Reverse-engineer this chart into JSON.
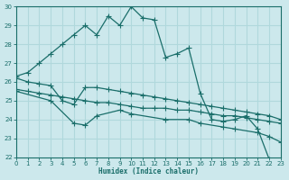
{
  "bg_color": "#cce8ec",
  "grid_color": "#b0d8dc",
  "line_color": "#1a6e6a",
  "xlabel": "Humidex (Indice chaleur)",
  "xlim": [
    0,
    23
  ],
  "ylim": [
    22,
    30
  ],
  "yticks": [
    22,
    23,
    24,
    25,
    26,
    27,
    28,
    29,
    30
  ],
  "xticks": [
    0,
    1,
    2,
    3,
    4,
    5,
    6,
    7,
    8,
    9,
    10,
    11,
    12,
    13,
    14,
    15,
    16,
    17,
    18,
    19,
    20,
    21,
    22,
    23
  ],
  "series1": {
    "x": [
      0,
      1,
      2,
      3,
      4,
      5,
      6,
      7,
      8,
      9,
      10,
      11,
      12,
      13,
      14,
      15,
      16,
      17,
      18,
      19,
      20,
      21,
      22,
      23
    ],
    "y": [
      26.3,
      26.5,
      27.0,
      27.5,
      28.0,
      28.5,
      29.0,
      28.5,
      29.5,
      29.0,
      30.0,
      29.4,
      29.3,
      27.3,
      27.5,
      27.8,
      25.4,
      24.0,
      23.9,
      24.0,
      24.2,
      23.5,
      21.9,
      21.8
    ]
  },
  "series2": {
    "x": [
      0,
      1,
      2,
      3,
      4,
      5,
      6,
      7,
      8,
      9,
      10,
      11,
      12,
      13,
      14,
      15,
      16,
      17,
      18,
      19,
      20,
      21,
      22,
      23
    ],
    "y": [
      26.2,
      26.0,
      25.9,
      25.8,
      25.0,
      24.8,
      25.7,
      25.7,
      25.6,
      25.5,
      25.4,
      25.3,
      25.2,
      25.1,
      25.0,
      24.9,
      24.8,
      24.7,
      24.6,
      24.5,
      24.4,
      24.3,
      24.2,
      24.0
    ]
  },
  "series3": {
    "x": [
      0,
      1,
      2,
      3,
      4,
      5,
      6,
      7,
      8,
      9,
      10,
      11,
      12,
      13,
      14,
      15,
      16,
      17,
      18,
      19,
      20,
      21,
      22,
      23
    ],
    "y": [
      25.6,
      25.5,
      25.4,
      25.3,
      25.2,
      25.1,
      25.0,
      24.9,
      24.9,
      24.8,
      24.7,
      24.6,
      24.6,
      24.6,
      24.5,
      24.5,
      24.4,
      24.3,
      24.2,
      24.2,
      24.1,
      24.0,
      23.9,
      23.8
    ]
  },
  "series4": {
    "x": [
      0,
      3,
      5,
      6,
      7,
      9,
      10,
      13,
      15,
      16,
      18,
      19,
      21,
      22,
      23
    ],
    "y": [
      25.5,
      25.0,
      23.8,
      23.7,
      24.2,
      24.5,
      24.3,
      24.0,
      24.0,
      23.8,
      23.6,
      23.5,
      23.3,
      23.1,
      22.8
    ]
  }
}
